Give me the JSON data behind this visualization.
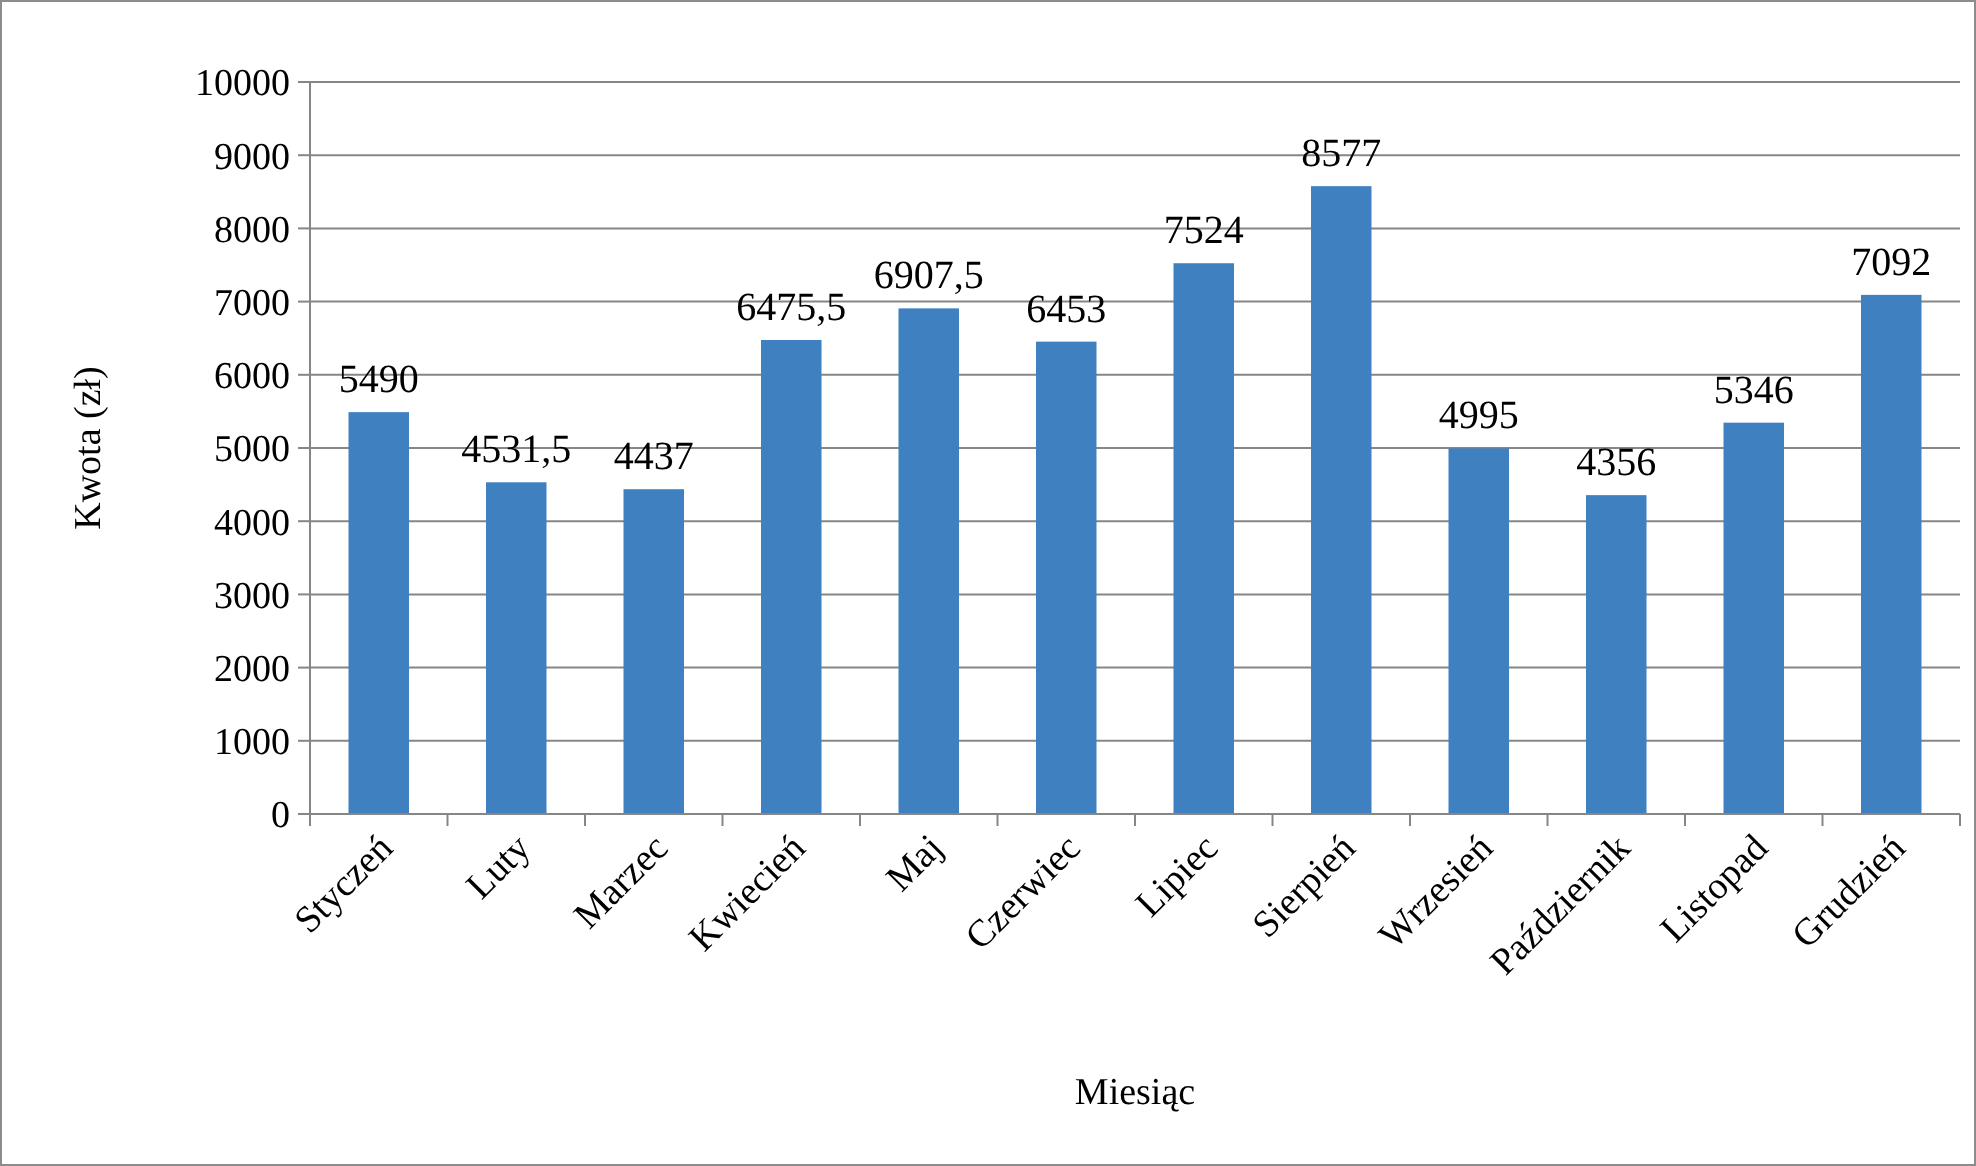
{
  "chart_data": {
    "type": "bar",
    "xlabel": "Miesiąc",
    "ylabel": "Kwota (zł)",
    "categories": [
      "Styczeń",
      "Luty",
      "Marzec",
      "Kwiecień",
      "Maj",
      "Czerwiec",
      "Lipiec",
      "Sierpień",
      "Wrzesień",
      "Październik",
      "Listopad",
      "Grudzień"
    ],
    "values": [
      5490,
      4531.5,
      4437,
      6475.5,
      6907.5,
      6453,
      7524,
      8577,
      4995,
      4356,
      5346,
      7092
    ],
    "value_labels": [
      "5490",
      "4531,5",
      "4437",
      "6475,5",
      "6907,5",
      "6453",
      "7524",
      "8577",
      "4995",
      "4356",
      "5346",
      "7092"
    ],
    "color": "#3f81c0",
    "ylim": [
      0,
      10000
    ],
    "yticks": [
      0,
      1000,
      2000,
      3000,
      4000,
      5000,
      6000,
      7000,
      8000,
      9000,
      10000
    ],
    "grid": "y"
  }
}
